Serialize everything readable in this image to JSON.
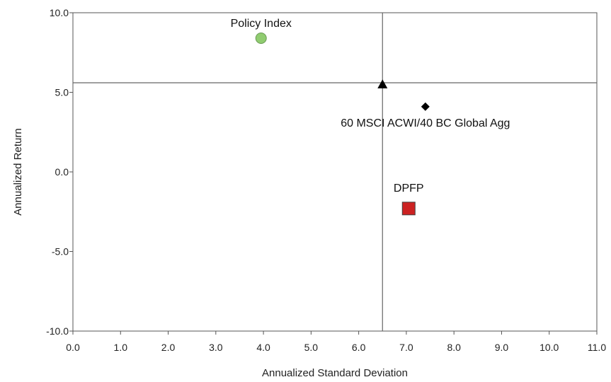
{
  "chart_data": {
    "type": "scatter",
    "title": "",
    "xlabel": "Annualized Standard Deviation",
    "ylabel": "Annualized Return",
    "xlim": [
      0,
      11
    ],
    "ylim": [
      -10,
      10
    ],
    "x_ticks": [
      "0.0",
      "1.0",
      "2.0",
      "3.0",
      "4.0",
      "5.0",
      "6.0",
      "7.0",
      "8.0",
      "9.0",
      "10.0",
      "11.0"
    ],
    "y_ticks": [
      "10.0",
      "5.0",
      "0.0",
      "-5.0",
      "-10.0"
    ],
    "grid": false,
    "reference_lines": {
      "x": 6.5,
      "y": 5.6
    },
    "points": [
      {
        "label": "Policy Index",
        "x": 3.95,
        "y": 8.4,
        "marker": "circle",
        "color": "#90CC70"
      },
      {
        "label": "",
        "x": 6.5,
        "y": 5.5,
        "marker": "triangle",
        "color": "#000000"
      },
      {
        "label": "60 MSCI ACWI/40 BC Global Agg",
        "x": 7.4,
        "y": 4.1,
        "marker": "diamond",
        "color": "#000000"
      },
      {
        "label": "DPFP",
        "x": 7.05,
        "y": -2.3,
        "marker": "square",
        "color": "#CC2222"
      }
    ]
  }
}
